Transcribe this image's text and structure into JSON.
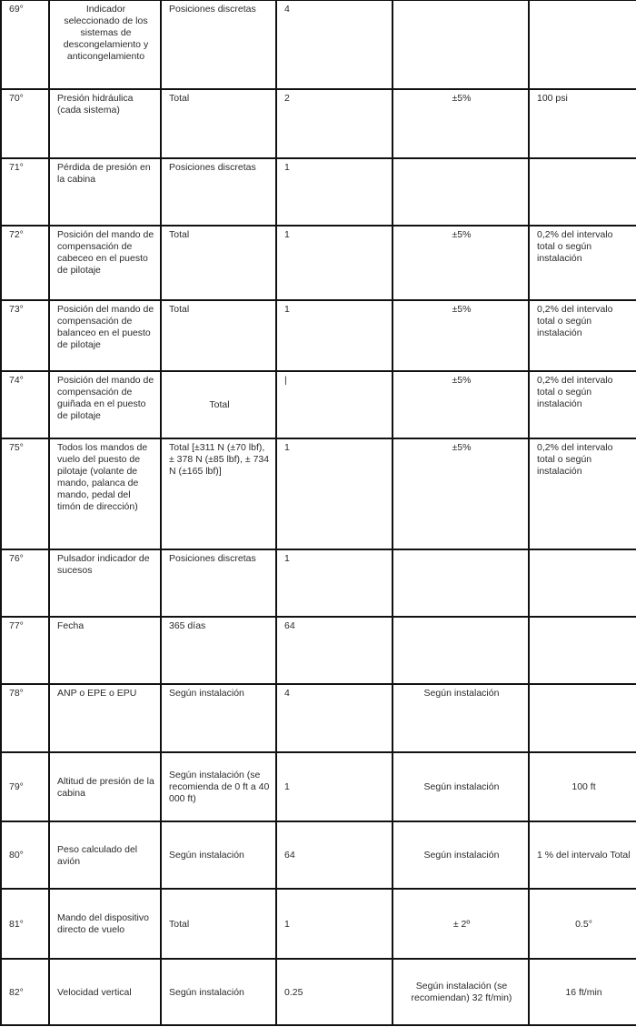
{
  "table": {
    "rows": [
      {
        "cells": [
          "69°",
          "Indicador seleccionado de los sistemas de descongelamiento y anticongelamiento",
          "Posiciones discretas",
          "4",
          "",
          ""
        ]
      },
      {
        "cells": [
          "70°",
          "Presión hidráulica (cada sistema)",
          "Total",
          "2",
          "±5%",
          "100 psi"
        ]
      },
      {
        "cells": [
          "71°",
          "Pérdida de presión en la cabina",
          "Posiciones discretas",
          "1",
          "",
          ""
        ]
      },
      {
        "cells": [
          "72°",
          "Posición del mando de compensación de cabeceo en el puesto de pilotaje",
          "Total",
          "1",
          "±5%",
          "0,2% del intervalo total o según instalación"
        ]
      },
      {
        "cells": [
          "73°",
          "Posición del mando de compensación de balanceo en el puesto de pilotaje",
          "Total",
          "1",
          "±5%",
          "0,2% del intervalo total o según instalación"
        ]
      },
      {
        "cells": [
          "74°",
          "Posición del mando de compensación de guiñada en el puesto de pilotaje",
          "Total",
          "|",
          "±5%",
          "0,2% del intervalo total o según instalación"
        ]
      },
      {
        "cells": [
          "75°",
          "Todos los mandos de vuelo del puesto de pilotaje (volante de mando, palanca de mando, pedal del timón de dirección)",
          "Total [±311 N (±70 lbf), ± 378 N (±85 lbf), ± 734 N (±165 lbf)]",
          "1",
          "±5%",
          "0,2% del intervalo total o según instalación"
        ]
      },
      {
        "cells": [
          "76°",
          "Pulsador indicador de sucesos",
          "Posiciones discretas",
          "1",
          "",
          ""
        ]
      },
      {
        "cells": [
          "77°",
          "Fecha",
          "365 días",
          "64",
          "",
          ""
        ]
      },
      {
        "cells": [
          "78°",
          "ANP o EPE o EPU",
          "Según instalación",
          "4",
          "Según instalación",
          ""
        ]
      },
      {
        "cells": [
          "79°",
          "Altitud de presión de la cabina",
          "Según instalación (se recomienda de 0 ft a 40 000 ft)",
          "1",
          "Según instalación",
          "100 ft"
        ]
      },
      {
        "cells": [
          "80°",
          "Peso calculado del avión",
          "Según instalación",
          "64",
          "Según instalación",
          "1 % del intervalo Total"
        ]
      },
      {
        "cells": [
          "81°",
          "Mando del dispositivo directo de vuelo",
          "Total",
          "1",
          "± 2º",
          "0.5°"
        ]
      },
      {
        "cells": [
          "82°",
          "Velocidad vertical",
          "Según instalación",
          "0.25",
          "Según instalación (se recomiendan) 32 ft/min)",
          "16 ft/min"
        ]
      }
    ]
  }
}
